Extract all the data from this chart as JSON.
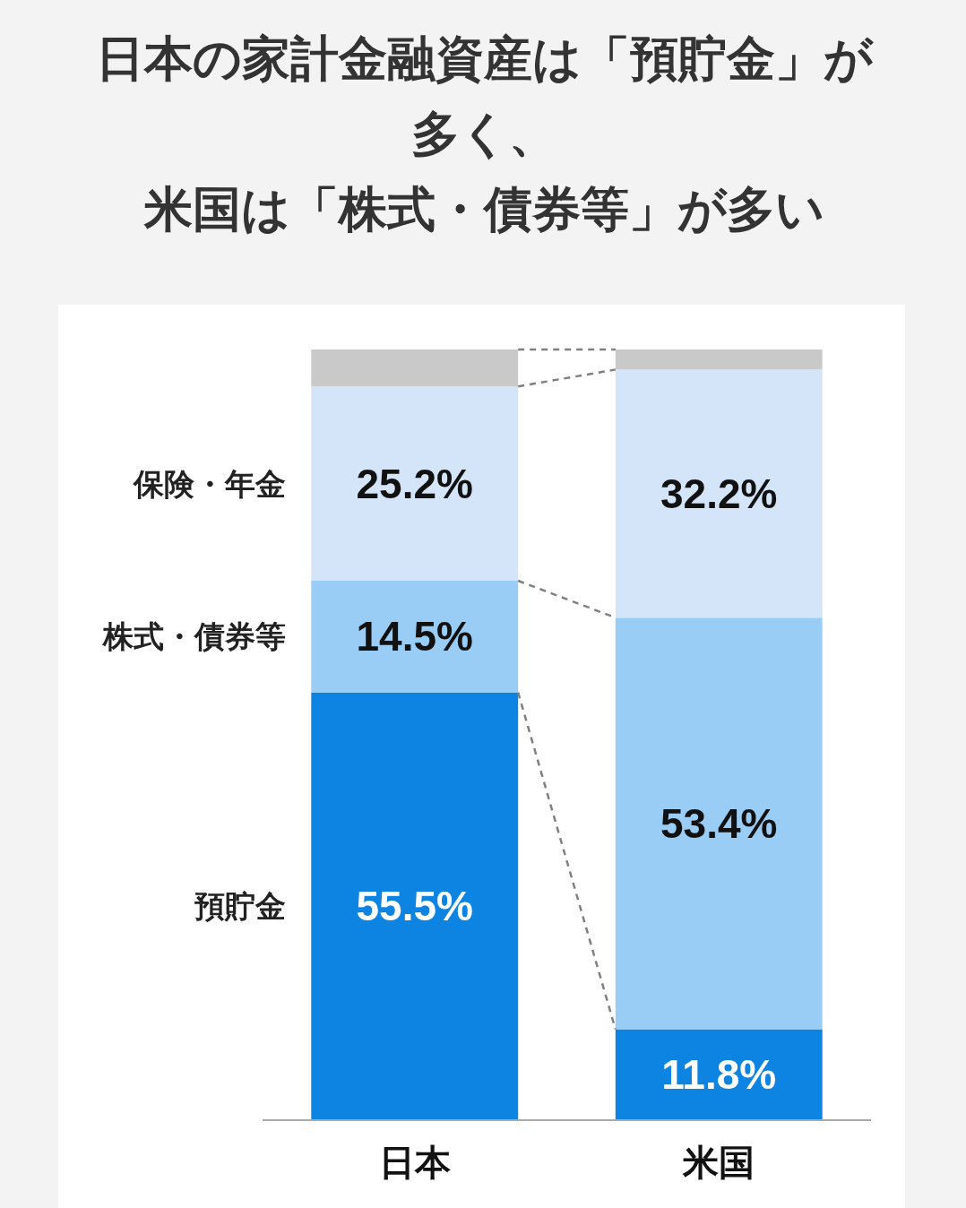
{
  "chart_data": {
    "type": "bar",
    "stacked": true,
    "title": "日本の家計金融資産は「預貯金」が多く、米国は「株式・債券等」が多い",
    "categories": [
      "日本",
      "米国"
    ],
    "series": [
      {
        "name": "預貯金",
        "color": "#0d83e2",
        "values": [
          55.5,
          11.8
        ],
        "value_labels": [
          "55.5%",
          "11.8%"
        ]
      },
      {
        "name": "株式・債券等",
        "color": "#99cdf6",
        "values": [
          14.5,
          53.4
        ],
        "value_labels": [
          "14.5%",
          "53.4%"
        ]
      },
      {
        "name": "保険・年金",
        "color": "#d4e5fa",
        "values": [
          25.2,
          32.2
        ],
        "value_labels": [
          "25.2%",
          "32.2%"
        ]
      },
      {
        "color": "#c9c9c9",
        "values": [
          4.8,
          2.6
        ],
        "value_labels": [
          null,
          null
        ]
      }
    ]
  }
}
